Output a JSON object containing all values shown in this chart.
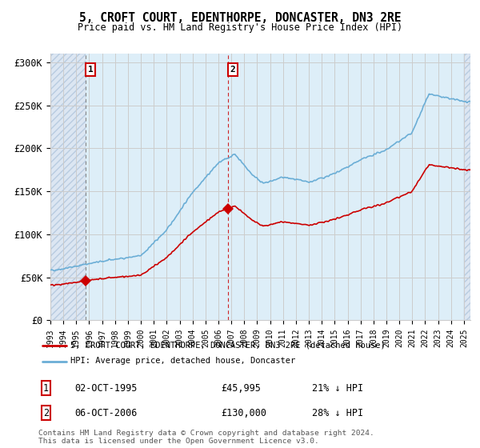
{
  "title": "5, CROFT COURT, EDENTHORPE, DONCASTER, DN3 2RE",
  "subtitle": "Price paid vs. HM Land Registry's House Price Index (HPI)",
  "ylim": [
    0,
    310000
  ],
  "yticks": [
    0,
    50000,
    100000,
    150000,
    200000,
    250000,
    300000
  ],
  "ytick_labels": [
    "£0",
    "£50K",
    "£100K",
    "£150K",
    "£200K",
    "£250K",
    "£300K"
  ],
  "sale1_date_num": 1995.75,
  "sale1_price": 45995,
  "sale2_date_num": 2006.75,
  "sale2_price": 130000,
  "hpi_color": "#6baed6",
  "price_color": "#cc0000",
  "background_color": "#ffffff",
  "legend_label_price": "5, CROFT COURT, EDENTHORPE, DONCASTER, DN3 2RE (detached house)",
  "legend_label_hpi": "HPI: Average price, detached house, Doncaster",
  "annotation1": "1",
  "annotation2": "2",
  "footer1": "Contains HM Land Registry data © Crown copyright and database right 2024.",
  "footer2": "This data is licensed under the Open Government Licence v3.0.",
  "table_row1": [
    "1",
    "02-OCT-1995",
    "£45,995",
    "21% ↓ HPI"
  ],
  "table_row2": [
    "2",
    "06-OCT-2006",
    "£130,000",
    "28% ↓ HPI"
  ],
  "xmin": 1993.0,
  "xmax": 2025.5,
  "hatch_region_color": "#dce6f0",
  "center_fill_color": "#ddeeff",
  "vline1_color": "#aaaaaa",
  "vline2_color": "#cc0000"
}
